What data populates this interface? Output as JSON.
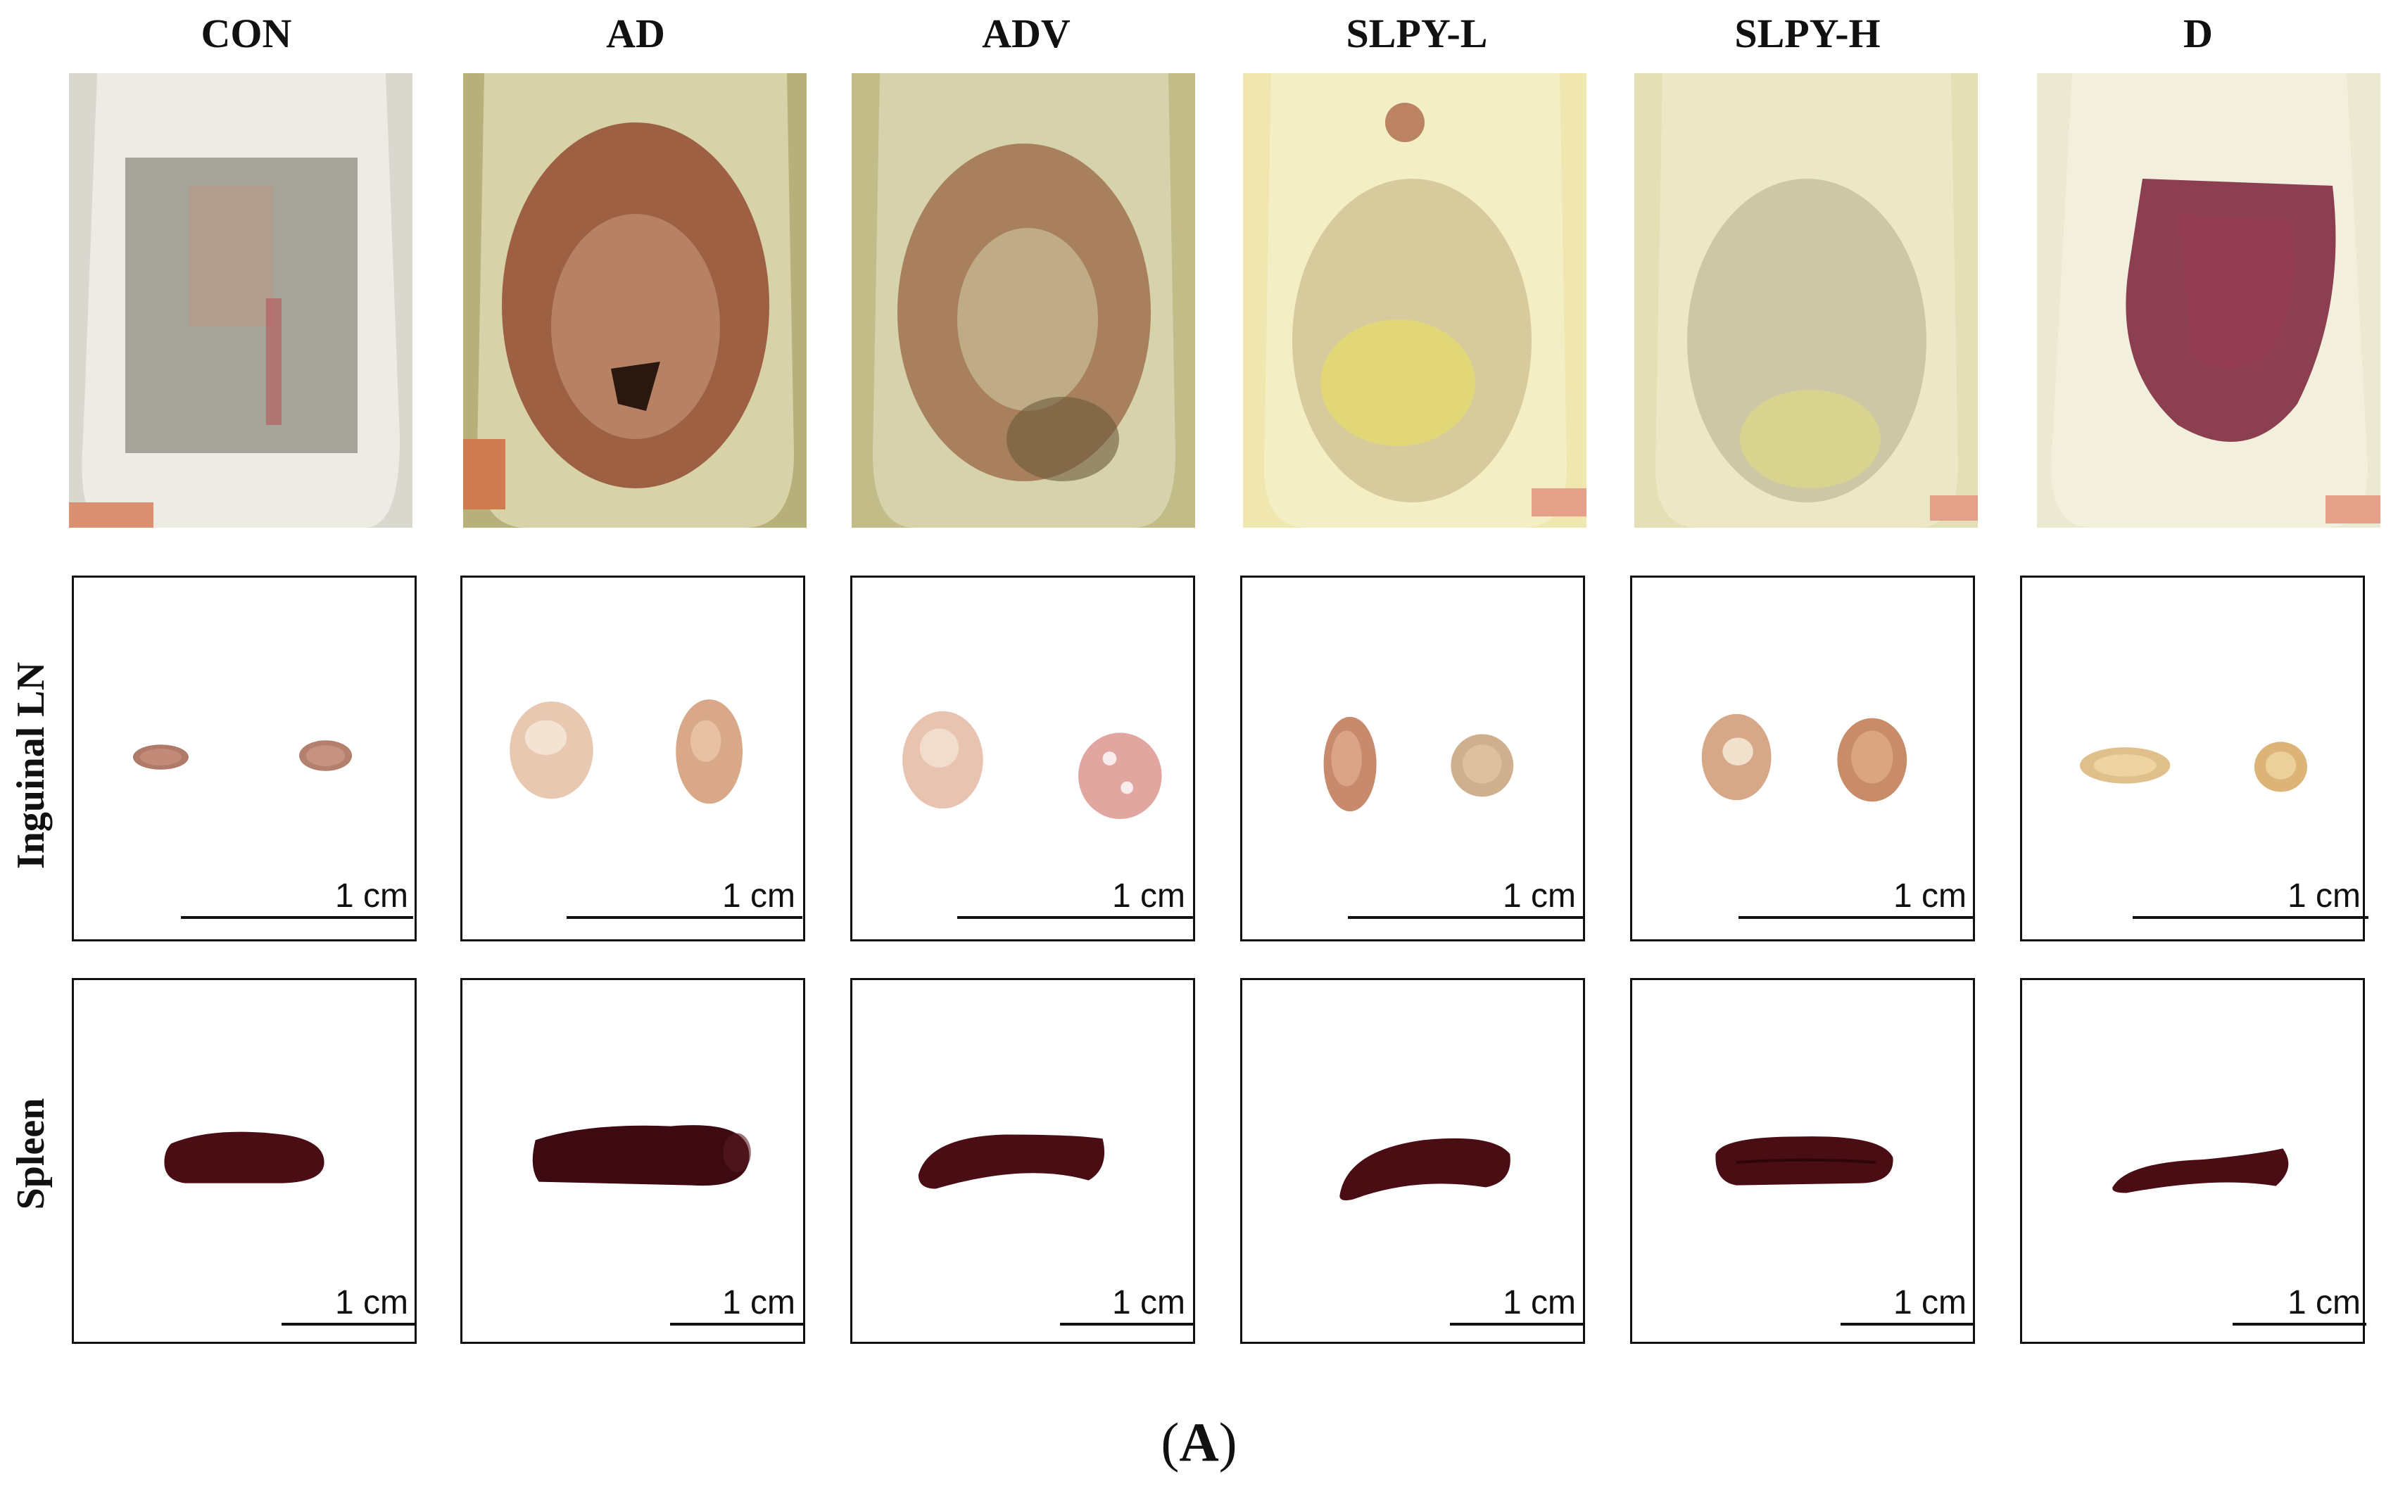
{
  "columns": [
    {
      "key": "con",
      "title": "CON"
    },
    {
      "key": "ad",
      "title": "AD"
    },
    {
      "key": "adv",
      "title": "ADV"
    },
    {
      "key": "slpyl",
      "title": "SLPY-L"
    },
    {
      "key": "slpyh",
      "title": "SLPY-H"
    },
    {
      "key": "d",
      "title": "D"
    }
  ],
  "rows": {
    "inguinal_label": "Inguinal LN",
    "spleen_label": "Spleen"
  },
  "scale_label": "1 cm",
  "panel_label": {
    "open": "(",
    "letter": "A",
    "close": ")"
  },
  "colors": {
    "fur_white": "#e9e7de",
    "fur_yellow": "#e8e3a8",
    "lesion_red": "#8a3a22",
    "lesion_purple": "#7a2038",
    "spleen": "#4a0d14",
    "node_pink": "#e8c8b0"
  }
}
